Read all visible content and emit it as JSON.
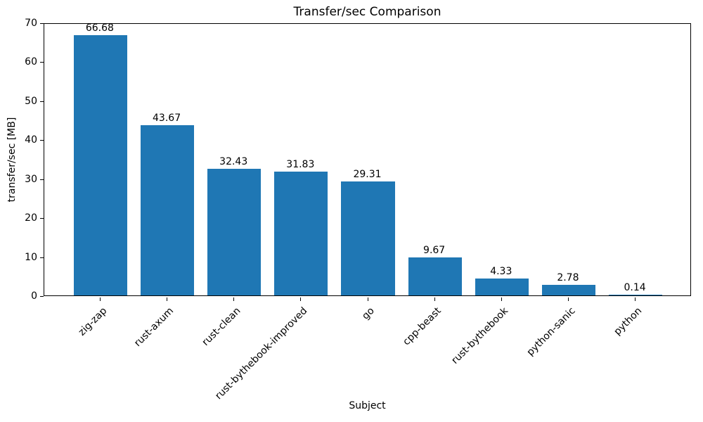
{
  "chart_data": {
    "type": "bar",
    "title": "Transfer/sec Comparison",
    "xlabel": "Subject",
    "ylabel": "transfer/sec [MB]",
    "categories": [
      "zig-zap",
      "rust-axum",
      "rust-clean",
      "rust-bythebook-improved",
      "go",
      "cpp-beast",
      "rust-bythebook",
      "python-sanic",
      "python"
    ],
    "values": [
      66.68,
      43.67,
      32.43,
      31.83,
      29.31,
      9.67,
      4.33,
      2.78,
      0.14
    ],
    "value_labels": [
      "66.68",
      "43.67",
      "32.43",
      "31.83",
      "29.31",
      "9.67",
      "4.33",
      "2.78",
      "0.14"
    ],
    "ylim": [
      0,
      70
    ],
    "yticks": [
      0,
      10,
      20,
      30,
      40,
      50,
      60,
      70
    ],
    "bar_color": "#1f77b4",
    "bar_width_fraction": 0.8,
    "grid": false,
    "legend": "none"
  }
}
